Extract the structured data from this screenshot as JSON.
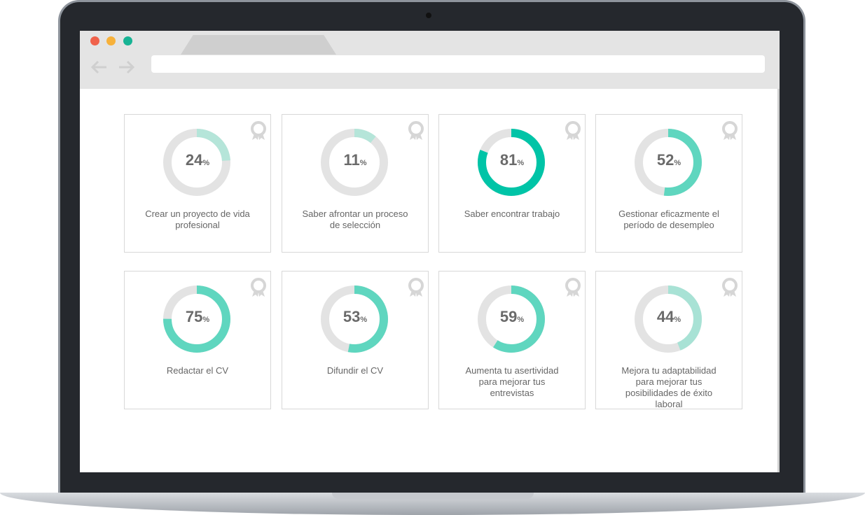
{
  "unit": "%",
  "cards": [
    {
      "value": 24,
      "label": "Crear un proyecto de vida profesional",
      "color": "#b5e5d9"
    },
    {
      "value": 11,
      "label": "Saber afrontar un proceso de selección",
      "color": "#b5e5d9"
    },
    {
      "value": 81,
      "label": "Saber encontrar trabajo",
      "color": "#00c4a7"
    },
    {
      "value": 52,
      "label": "Gestionar eficazmente el período de desempleo",
      "color": "#5fd6bf"
    },
    {
      "value": 75,
      "label": "Redactar el CV",
      "color": "#5fd6bf"
    },
    {
      "value": 53,
      "label": "Difundir el CV",
      "color": "#5fd6bf"
    },
    {
      "value": 59,
      "label": "Aumenta tu asertividad para mejorar tus entrevistas",
      "color": "#5fd6bf"
    },
    {
      "value": 44,
      "label": "Mejora tu adaptabilidad para mejorar tus posibilidades de éxito laboral",
      "color": "#a8e2d5"
    }
  ]
}
